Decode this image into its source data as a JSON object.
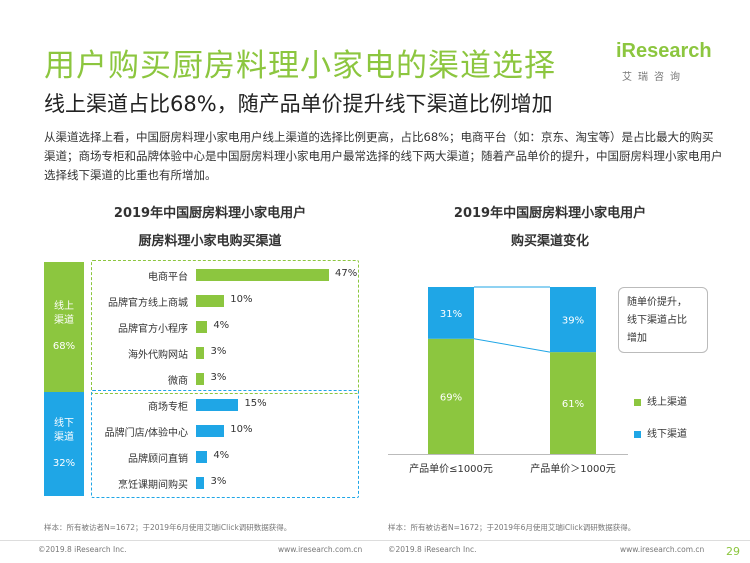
{
  "title": "用户购买厨房料理小家电的渠道选择",
  "subtitle": "线上渠道占比68%，随产品单价提升线下渠道比例增加",
  "intro": "从渠道选择上看，中国厨房料理小家电用户线上渠道的选择比例更高，占比68%；电商平台（如：京东、淘宝等）是占比最大的购买渠道；商场专柜和品牌体验中心是中国厨房料理小家电用户最常选择的线下两大渠道；随着产品单价的提升，中国厨房料理小家电用户选择线下渠道的比重也有所增加。",
  "logo": {
    "word": "iResearch",
    "cn": "艾瑞咨询"
  },
  "colors": {
    "accent": "#8cc63f",
    "online": "#8cc63f",
    "offline": "#1fa6e6"
  },
  "chart_data": [
    {
      "type": "bar",
      "orientation": "horizontal",
      "title_line1": "2019年中国厨房料理小家电用户",
      "title_line2": "厨房料理小家电购买渠道",
      "xlim": [
        0,
        50
      ],
      "groups": [
        {
          "name": "线上渠道",
          "label_line1": "线上",
          "label_line2": "渠道",
          "share": "68%",
          "categories": [
            "电商平台",
            "品牌官方线上商城",
            "品牌官方小程序",
            "海外代购网站",
            "微商"
          ],
          "values": [
            47,
            10,
            4,
            3,
            3
          ],
          "value_labels": [
            "47%",
            "10%",
            "4%",
            "3%",
            "3%"
          ]
        },
        {
          "name": "线下渠道",
          "label_line1": "线下",
          "label_line2": "渠道",
          "share": "32%",
          "categories": [
            "商场专柜",
            "品牌门店/体验中心",
            "品牌顾问直销",
            "烹饪课期间购买"
          ],
          "values": [
            15,
            10,
            4,
            3
          ],
          "value_labels": [
            "15%",
            "10%",
            "4%",
            "3%"
          ]
        }
      ]
    },
    {
      "type": "bar",
      "stacked": true,
      "percent": true,
      "title_line1": "2019年中国厨房料理小家电用户",
      "title_line2": "购买渠道变化",
      "categories": [
        "产品单价≤1000元",
        "产品单价＞1000元"
      ],
      "series": [
        {
          "name": "线上渠道",
          "values": [
            69,
            61
          ],
          "labels": [
            "69%",
            "61%"
          ]
        },
        {
          "name": "线下渠道",
          "values": [
            31,
            39
          ],
          "labels": [
            "31%",
            "39%"
          ]
        }
      ],
      "callout": [
        "随单价提升，",
        "线下渠道占比",
        "增加"
      ]
    }
  ],
  "notes": {
    "left": "样本：所有被访者N=1672；于2019年6月使用艾瑞iClick调研数据获得。",
    "right": "样本：所有被访者N=1672；于2019年6月使用艾瑞iClick调研数据获得。"
  },
  "footer": {
    "left_copyright": "©2019.8 iResearch Inc.",
    "left_url": "www.iresearch.com.cn",
    "right_copyright": "©2019.8 iResearch Inc.",
    "right_url": "www.iresearch.com.cn",
    "page": "29"
  }
}
